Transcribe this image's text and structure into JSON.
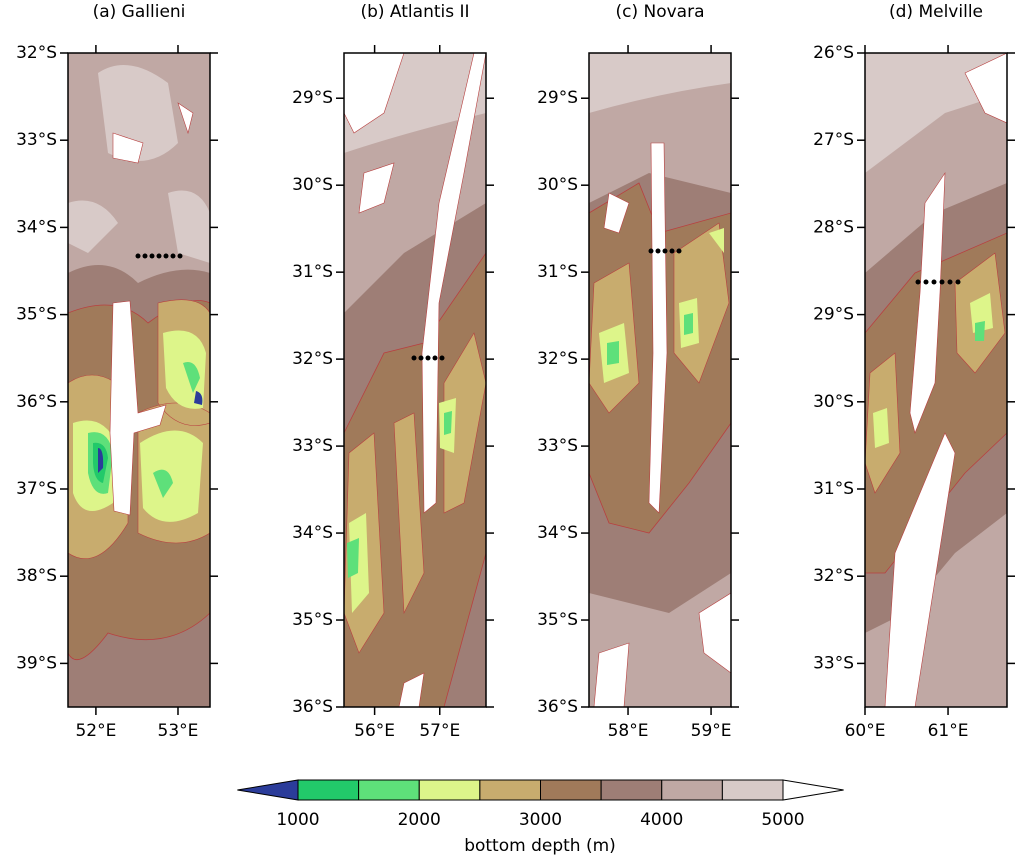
{
  "panels": [
    {
      "title": "(a) Gallieni",
      "xlim": [
        51.66,
        53.39
      ],
      "ylim": [
        -39.5,
        -32
      ],
      "xticks": [
        {
          "value": 52,
          "label": "52°E"
        },
        {
          "value": 53,
          "label": "53°E"
        }
      ],
      "yticks": [
        {
          "value": -32,
          "label": "32°S"
        },
        {
          "value": -33,
          "label": "33°S"
        },
        {
          "value": -34,
          "label": "34°S"
        },
        {
          "value": -35,
          "label": "35°S"
        },
        {
          "value": -36,
          "label": "36°S"
        },
        {
          "value": -37,
          "label": "37°S"
        },
        {
          "value": -38,
          "label": "38°S"
        },
        {
          "value": -39,
          "label": "39°S"
        }
      ]
    },
    {
      "title": "(b) Atlantis II",
      "xlim": [
        55.53,
        57.71
      ],
      "ylim": [
        -36,
        -28.48
      ],
      "xticks": [
        {
          "value": 56,
          "label": "56°E"
        },
        {
          "value": 57,
          "label": "57°E"
        }
      ],
      "yticks": [
        {
          "value": -29,
          "label": "29°S"
        },
        {
          "value": -30,
          "label": "30°S"
        },
        {
          "value": -31,
          "label": "31°S"
        },
        {
          "value": -32,
          "label": "32°S"
        },
        {
          "value": -33,
          "label": "33°S"
        },
        {
          "value": -34,
          "label": "34°S"
        },
        {
          "value": -35,
          "label": "35°S"
        },
        {
          "value": -36,
          "label": "36°S"
        }
      ]
    },
    {
      "title": "(c) Novara",
      "xlim": [
        57.53,
        59.24
      ],
      "ylim": [
        -36,
        -28.48
      ],
      "xticks": [
        {
          "value": 58,
          "label": "58°E"
        },
        {
          "value": 59,
          "label": "59°E"
        }
      ],
      "yticks": [
        {
          "value": -29,
          "label": "29°S"
        },
        {
          "value": -30,
          "label": "30°S"
        },
        {
          "value": -31,
          "label": "31°S"
        },
        {
          "value": -32,
          "label": "32°S"
        },
        {
          "value": -33,
          "label": "33°S"
        },
        {
          "value": -34,
          "label": "34°S"
        },
        {
          "value": -35,
          "label": "35°S"
        },
        {
          "value": -36,
          "label": "36°S"
        }
      ]
    },
    {
      "title": "(d) Melville",
      "xlim": [
        60,
        61.71
      ],
      "ylim": [
        -33.5,
        -26
      ],
      "xticks": [
        {
          "value": 60,
          "label": "60°E"
        },
        {
          "value": 61,
          "label": "61°E"
        }
      ],
      "yticks": [
        {
          "value": -26,
          "label": "26°S"
        },
        {
          "value": -27,
          "label": "27°S"
        },
        {
          "value": -28,
          "label": "28°S"
        },
        {
          "value": -29,
          "label": "29°S"
        },
        {
          "value": -30,
          "label": "30°S"
        },
        {
          "value": -31,
          "label": "31°S"
        },
        {
          "value": -32,
          "label": "32°S"
        },
        {
          "value": -33,
          "label": "33°S"
        }
      ]
    }
  ],
  "colorbar": {
    "title": "bottom depth (m)",
    "lim": [
      1000,
      5000
    ],
    "ticks": [
      1000,
      2000,
      3000,
      4000,
      5000
    ],
    "colors": [
      "#2b3c9a",
      "#22c96a",
      "#5ee07a",
      "#ddf58a",
      "#c8ac6e",
      "#a07a5a",
      "#9e7e76",
      "#c0a8a4",
      "#d8cac8",
      "#ffffff"
    ]
  }
}
